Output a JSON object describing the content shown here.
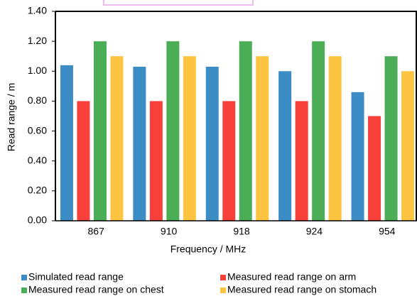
{
  "chart_data": {
    "type": "bar",
    "x_label": "Frequency / MHz",
    "y_label": "Read range / m",
    "categories": [
      "867",
      "910",
      "918",
      "924",
      "954"
    ],
    "series": [
      {
        "name": "Simulated read range",
        "color": "#3c8dc5",
        "values": [
          1.04,
          1.03,
          1.03,
          1.0,
          0.86
        ]
      },
      {
        "name": "Measured read range on arm",
        "color": "#f8403a",
        "values": [
          0.8,
          0.8,
          0.8,
          0.8,
          0.7
        ]
      },
      {
        "name": "Measured read range on chest",
        "color": "#4cad57",
        "values": [
          1.2,
          1.2,
          1.2,
          1.2,
          1.1
        ]
      },
      {
        "name": "Measured read range on stomach",
        "color": "#fcc440",
        "values": [
          1.1,
          1.1,
          1.1,
          1.1,
          1.0
        ]
      }
    ],
    "ylim": [
      0,
      1.4
    ],
    "yticks": [
      {
        "value": 0,
        "label": "0.00"
      },
      {
        "value": 0.2,
        "label": "0.20"
      },
      {
        "value": 0.4,
        "label": "0.40"
      },
      {
        "value": 0.6,
        "label": "0.60"
      },
      {
        "value": 0.8,
        "label": "0.80"
      },
      {
        "value": 1.0,
        "label": "1.00"
      },
      {
        "value": 1.2,
        "label": "1.20"
      },
      {
        "value": 1.4,
        "label": "1.40"
      }
    ],
    "grid": false
  }
}
